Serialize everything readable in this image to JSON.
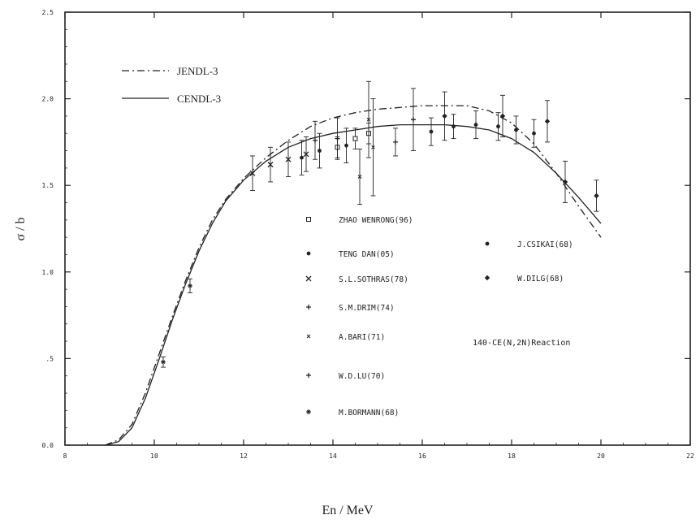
{
  "chart_data": {
    "type": "scatter",
    "title": "",
    "xlabel": "En / MeV",
    "ylabel": "σ / b",
    "xlim": [
      8,
      22
    ],
    "ylim": [
      0,
      2.5
    ],
    "x_ticks": [
      8,
      10,
      12,
      14,
      16,
      18,
      20,
      22
    ],
    "x_tick_labels": [
      "8",
      "10",
      "12",
      "14",
      "16",
      "18",
      "20",
      "22"
    ],
    "y_ticks": [
      0,
      0.5,
      1.0,
      1.5,
      2.0,
      2.5
    ],
    "y_tick_labels": [
      "0.0",
      ".5",
      "1.0",
      "1.5",
      "2.0",
      "2.5"
    ],
    "grid": false,
    "annotation": "140-CE(N,2N)Reaction",
    "curves": [
      {
        "name": "JENDL-3",
        "style": "dashdot",
        "x": [
          8.9,
          9.2,
          9.5,
          9.8,
          10.1,
          10.4,
          10.7,
          11.0,
          11.3,
          11.6,
          12.0,
          12.5,
          13.0,
          13.5,
          14.0,
          14.5,
          15.0,
          15.5,
          16.0,
          16.5,
          17.0,
          17.5,
          18.0,
          18.5,
          19.0,
          19.5,
          20.0
        ],
        "y": [
          0.0,
          0.03,
          0.12,
          0.3,
          0.52,
          0.74,
          0.95,
          1.14,
          1.3,
          1.42,
          1.54,
          1.66,
          1.76,
          1.84,
          1.89,
          1.92,
          1.94,
          1.95,
          1.96,
          1.96,
          1.96,
          1.93,
          1.86,
          1.74,
          1.57,
          1.38,
          1.2
        ]
      },
      {
        "name": "CENDL-3",
        "style": "solid",
        "x": [
          8.9,
          9.2,
          9.5,
          9.8,
          10.1,
          10.4,
          10.7,
          11.0,
          11.3,
          11.6,
          12.0,
          12.5,
          13.0,
          13.5,
          14.0,
          14.5,
          15.0,
          15.5,
          16.0,
          16.5,
          17.0,
          17.5,
          18.0,
          18.5,
          19.0,
          19.5,
          20.0
        ],
        "y": [
          0.0,
          0.02,
          0.1,
          0.27,
          0.49,
          0.72,
          0.93,
          1.12,
          1.28,
          1.41,
          1.53,
          1.64,
          1.72,
          1.77,
          1.8,
          1.82,
          1.84,
          1.85,
          1.85,
          1.85,
          1.84,
          1.82,
          1.77,
          1.69,
          1.57,
          1.43,
          1.28
        ]
      }
    ],
    "series": [
      {
        "name": "ZHAO WENRONG(96)",
        "marker": "square",
        "points": [
          {
            "x": 14.1,
            "y": 1.72,
            "err": 0.06
          },
          {
            "x": 14.5,
            "y": 1.77,
            "err": 0.06
          },
          {
            "x": 14.8,
            "y": 1.8,
            "err": 0.06
          }
        ]
      },
      {
        "name": "TENG DAN(05)",
        "marker": "filled-circle",
        "points": [
          {
            "x": 13.3,
            "y": 1.66,
            "err": 0.1
          },
          {
            "x": 13.7,
            "y": 1.7,
            "err": 0.1
          },
          {
            "x": 14.3,
            "y": 1.73,
            "err": 0.1
          }
        ]
      },
      {
        "name": "S.L.SOTHRAS(78)",
        "marker": "cross",
        "points": [
          {
            "x": 12.2,
            "y": 1.57,
            "err": 0.1
          },
          {
            "x": 12.6,
            "y": 1.62,
            "err": 0.1
          },
          {
            "x": 13.0,
            "y": 1.65,
            "err": 0.1
          },
          {
            "x": 13.4,
            "y": 1.68,
            "err": 0.1
          }
        ]
      },
      {
        "name": "S.M.DRIM(74)",
        "marker": "plus",
        "points": [
          {
            "x": 13.6,
            "y": 1.76,
            "err": 0.11
          },
          {
            "x": 14.1,
            "y": 1.77,
            "err": 0.12
          }
        ]
      },
      {
        "name": "A.BARI(71)",
        "marker": "cross-small",
        "points": [
          {
            "x": 14.6,
            "y": 1.55,
            "err": 0.16
          },
          {
            "x": 14.8,
            "y": 1.88,
            "err": 0.22
          },
          {
            "x": 14.9,
            "y": 1.72,
            "err": 0.28
          }
        ]
      },
      {
        "name": "W.D.LU(70)",
        "marker": "plus",
        "points": [
          {
            "x": 15.4,
            "y": 1.75,
            "err": 0.08
          },
          {
            "x": 15.8,
            "y": 1.88,
            "err": 0.18
          }
        ]
      },
      {
        "name": "M.BORMANN(68)",
        "marker": "star",
        "points": [
          {
            "x": 10.2,
            "y": 0.48,
            "err": 0.03
          },
          {
            "x": 10.8,
            "y": 0.92,
            "err": 0.04
          }
        ]
      },
      {
        "name": "J.CSIKAI(68)",
        "marker": "filled-circle",
        "points": [
          {
            "x": 16.2,
            "y": 1.81,
            "err": 0.08
          },
          {
            "x": 16.7,
            "y": 1.84,
            "err": 0.07
          },
          {
            "x": 17.2,
            "y": 1.85,
            "err": 0.08
          },
          {
            "x": 17.7,
            "y": 1.84,
            "err": 0.08
          },
          {
            "x": 18.1,
            "y": 1.82,
            "err": 0.08
          },
          {
            "x": 18.5,
            "y": 1.8,
            "err": 0.08
          }
        ]
      },
      {
        "name": "W.DILG(68)",
        "marker": "diamond",
        "points": [
          {
            "x": 16.5,
            "y": 1.9,
            "err": 0.14
          },
          {
            "x": 17.8,
            "y": 1.9,
            "err": 0.12
          },
          {
            "x": 18.8,
            "y": 1.87,
            "err": 0.12
          },
          {
            "x": 19.2,
            "y": 1.52,
            "err": 0.12
          },
          {
            "x": 19.9,
            "y": 1.44,
            "err": 0.09
          }
        ]
      }
    ]
  }
}
